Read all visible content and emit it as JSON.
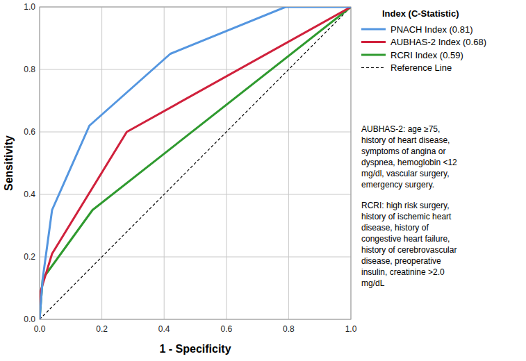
{
  "chart_data": {
    "type": "line",
    "x_label": "1 - Specificity",
    "y_label": "Sensitivity",
    "legend_title": "Index (C-Statistic)",
    "legend": "right",
    "grid": true,
    "xlim": [
      0,
      1
    ],
    "ylim": [
      0,
      1
    ],
    "xticks": [
      {
        "value": 0,
        "label": "0.0"
      },
      0.2,
      0.4,
      0.6,
      0.8,
      {
        "value": 1,
        "label": "1.0"
      }
    ],
    "yticks": [
      {
        "value": 0,
        "label": "0.0"
      },
      0.2,
      0.4,
      0.6,
      0.8,
      {
        "value": 1,
        "label": "1.0"
      }
    ],
    "series": [
      {
        "name": "PNACH Index (0.81)",
        "color": "#5496e0",
        "line_style": "solid",
        "x": [
          0,
          0.01,
          0.04,
          0.16,
          0.42,
          0.79,
          1
        ],
        "values": [
          0,
          0.13,
          0.35,
          0.62,
          0.85,
          1,
          1
        ]
      },
      {
        "name": "AUBHAS-2 Index (0.68)",
        "color": "#d0213c",
        "line_style": "solid",
        "x": [
          0,
          0,
          0.04,
          0.28,
          1
        ],
        "values": [
          0,
          0.08,
          0.21,
          0.6,
          1
        ]
      },
      {
        "name": "RCRI Index (0.59)",
        "color": "#2f9a2f",
        "line_style": "solid",
        "x": [
          0,
          0.01,
          0.17,
          1
        ],
        "values": [
          0,
          0.13,
          0.35,
          1
        ]
      },
      {
        "name": "Reference Line",
        "color": "#000000",
        "line_style": "dashed",
        "x": [
          0,
          1
        ],
        "values": [
          0,
          1
        ]
      }
    ],
    "annotations": [
      [
        "AUBHAS-2: age ≥75,",
        "history of heart disease,",
        "symptoms of angina or",
        "dyspnea, hemoglobin <12",
        "mg/dl, vascular surgery,",
        "emergency surgery."
      ],
      [
        "RCRI: high risk surgery,",
        "history of ischemic heart",
        "disease, history of",
        "congestive heart failure,",
        "history of cerebrovascular",
        "disease, preoperative",
        "insulin, creatinine >2.0",
        "mg/dL"
      ]
    ]
  }
}
